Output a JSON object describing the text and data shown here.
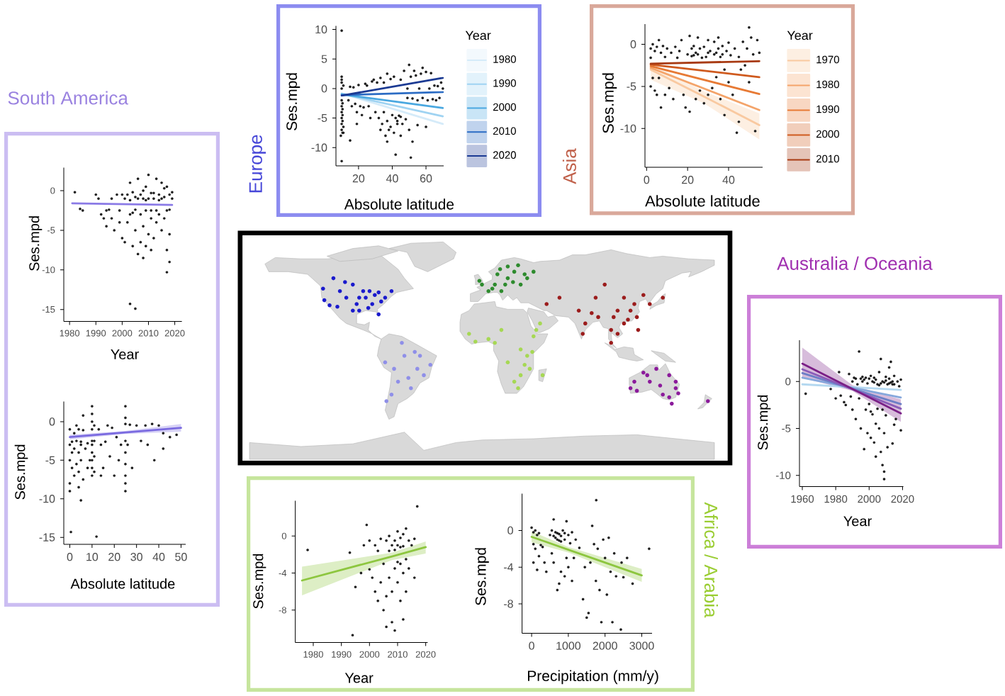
{
  "chart_data": [
    {
      "type": "scatter",
      "title": "Europe",
      "xlabel": "Absolute latitude",
      "ylabel": "Ses.mpd",
      "legend_title": "Year",
      "legend": "right",
      "xlim": [
        6.6,
        70.5
      ],
      "ylim": [
        -13.1,
        10.6
      ],
      "xticks": [
        20,
        40,
        60
      ],
      "yticks": [
        -10,
        -5,
        0,
        5,
        10
      ],
      "series": [
        {
          "color": "#1a1a1a",
          "marker": "circle",
          "x": [
            10,
            10,
            10,
            9.5,
            10,
            10,
            10,
            10,
            10,
            10,
            10.5,
            10,
            10.5,
            10.5,
            10.5,
            10.5,
            11,
            11,
            11,
            10,
            10,
            14,
            15,
            16,
            17,
            18,
            19,
            20,
            21,
            22,
            23,
            24,
            25,
            26,
            27,
            28,
            29,
            30,
            15,
            19,
            32,
            33,
            34,
            35,
            36,
            37,
            38,
            39,
            40,
            41,
            42,
            43,
            44,
            45,
            37,
            46,
            48,
            50,
            52,
            51,
            42,
            31,
            33,
            35,
            37,
            39,
            41,
            43,
            45,
            47,
            49,
            50,
            51,
            52,
            53,
            54,
            55,
            56,
            57,
            58,
            60,
            61,
            62,
            63,
            64,
            65,
            66,
            67,
            68,
            69,
            70,
            58,
            49,
            45,
            60,
            55
          ],
          "values": [
            2,
            1,
            0,
            -8,
            -2,
            -3,
            -4,
            -5,
            -6,
            -7,
            -7.5,
            1.5,
            -2.5,
            -3.5,
            -4.5,
            -5.5,
            -6.5,
            -7.5,
            0.5,
            9.8,
            -12.3,
            -2,
            0.3,
            -3,
            0.2,
            -2.6,
            -4,
            0.6,
            -3,
            -4.5,
            -3.2,
            0.8,
            0.5,
            -3,
            -5,
            1.2,
            1.5,
            -4,
            -8.8,
            -6,
            -5,
            -7,
            -6,
            -4,
            -8,
            -5.5,
            -7,
            -6.5,
            -4.5,
            -7.5,
            -5,
            -6,
            -4.6,
            -8,
            -9,
            -6,
            -5.2,
            -7,
            -9,
            -11.7,
            -11.2,
            1,
            1.8,
            1,
            2.5,
            1.6,
            2,
            -5.5,
            1.5,
            3,
            0,
            4,
            2,
            -1.7,
            3,
            2.2,
            -2,
            0,
            2.5,
            -1.6,
            2.8,
            -2,
            0,
            2.6,
            -1.8,
            0.5,
            -2,
            0.4,
            -1.6,
            1,
            0,
            3.5,
            -1.6,
            -4.8,
            -6.5,
            -6.2
          ]
        },
        {
          "type": "line",
          "name": "1980",
          "color": "#d5ebf9",
          "x": [
            10,
            70
          ],
          "values": [
            -0.8,
            -6.0
          ]
        },
        {
          "type": "line",
          "name": "1990",
          "color": "#9fd3f2",
          "x": [
            10,
            70
          ],
          "values": [
            -0.9,
            -4.7
          ]
        },
        {
          "type": "line",
          "name": "2000",
          "color": "#4aa8e0",
          "x": [
            10,
            70
          ],
          "values": [
            -1.0,
            -3.3
          ]
        },
        {
          "type": "line",
          "name": "2010",
          "color": "#2b6cc4",
          "x": [
            10,
            70
          ],
          "values": [
            -1.1,
            -0.6
          ]
        },
        {
          "type": "line",
          "name": "2020",
          "color": "#1b3a93",
          "x": [
            10,
            70
          ],
          "values": [
            -1.2,
            1.8
          ]
        }
      ]
    },
    {
      "type": "scatter",
      "title": "Asia",
      "xlabel": "Absolute latitude",
      "ylabel": "Ses.mpd",
      "legend_title": "Year",
      "legend": "right",
      "xlim": [
        -0.8,
        56.6
      ],
      "ylim": [
        -14.6,
        2.4
      ],
      "xticks": [
        0,
        20,
        40
      ],
      "yticks": [
        -10,
        -5,
        0
      ],
      "series": [
        {
          "color": "#1a1a1a",
          "marker": "circle",
          "x": [
            2,
            3,
            4,
            5,
            6,
            7,
            8,
            2,
            3,
            4,
            5,
            6,
            2,
            7,
            9,
            10,
            12,
            13,
            14,
            16,
            17,
            18,
            19,
            20,
            21,
            21,
            22,
            22,
            23,
            23,
            24,
            24,
            25,
            25,
            26,
            26,
            27,
            28,
            28,
            29,
            30,
            30,
            31,
            32,
            33,
            33,
            34,
            34,
            35,
            35,
            36,
            36,
            37,
            37,
            38,
            39,
            40,
            40,
            41,
            42,
            43,
            44,
            45,
            46,
            47,
            48,
            49,
            50,
            50,
            51,
            52,
            53,
            54,
            55,
            15,
            11,
            9,
            45,
            30,
            38
          ],
          "values": [
            -0.5,
            0,
            -0.8,
            -0.3,
            0.5,
            -1,
            -0.2,
            -1.6,
            -4,
            -5.5,
            -6,
            -4,
            -5,
            -7.5,
            -1.5,
            -0.5,
            -1,
            -6.5,
            -0.3,
            -0.8,
            0.5,
            -6,
            -7.5,
            -1.2,
            -8,
            1,
            -0.5,
            -1.4,
            -0.2,
            -1.3,
            -1,
            -6.5,
            0.8,
            -1.2,
            -0.5,
            -5.5,
            -1.6,
            -0.3,
            -7,
            -1.5,
            0.5,
            -1,
            -0.8,
            -5.2,
            0.3,
            -1.2,
            -1,
            -3.9,
            0.8,
            -0.5,
            -1.5,
            -6.5,
            -0.2,
            -1.2,
            -3,
            -0.8,
            0.2,
            -4.5,
            -1.3,
            -6,
            -0.5,
            -10.5,
            -1.5,
            -3,
            0.3,
            -2.5,
            -0.5,
            2,
            -4.5,
            0.8,
            -1.2,
            -10.3,
            0.5,
            -1,
            -1.6,
            -5.2,
            -6,
            -9.2,
            -6,
            -8.4
          ]
        },
        {
          "type": "line",
          "name": "1970",
          "color": "#f9c9a0",
          "x": [
            2,
            28,
            55
          ],
          "values": [
            -3.0,
            -6.2,
            -9.6
          ],
          "lower": [
            -4.2,
            -7.0,
            -11.3
          ],
          "upper": [
            -2.2,
            -5.6,
            -8.2
          ]
        },
        {
          "type": "line",
          "name": "1980",
          "color": "#f4a46a",
          "x": [
            2,
            55
          ],
          "values": [
            -2.8,
            -7.8
          ]
        },
        {
          "type": "line",
          "name": "1990",
          "color": "#e77a35",
          "x": [
            2,
            55
          ],
          "values": [
            -2.6,
            -5.9
          ]
        },
        {
          "type": "line",
          "name": "2000",
          "color": "#cf5a1e",
          "x": [
            2,
            55
          ],
          "values": [
            -2.4,
            -3.9
          ]
        },
        {
          "type": "line",
          "name": "2010",
          "color": "#a83a12",
          "x": [
            2,
            55
          ],
          "values": [
            -2.3,
            -2.0
          ]
        }
      ]
    },
    {
      "type": "scatter",
      "title": "South America",
      "xlabel": "Year",
      "ylabel": "Ses.mpd",
      "xlim": [
        1977.8,
        2022.7
      ],
      "ylim": [
        -16.5,
        2.9
      ],
      "xticks": [
        1980,
        1990,
        2000,
        2010,
        2020
      ],
      "yticks": [
        -15,
        -10,
        -5,
        0
      ],
      "series": [
        {
          "color": "#1a1a1a",
          "marker": "circle",
          "x": [
            1982,
            1984,
            1985,
            1990,
            1991,
            1992,
            1993,
            1994,
            1995,
            1996,
            1997,
            1998,
            1999,
            2000,
            2001,
            2002,
            2002,
            2003,
            2003,
            2003,
            2004,
            2004,
            2005,
            2005,
            2005,
            2006,
            2006,
            2006,
            2007,
            2007,
            2007,
            2008,
            2008,
            2008,
            2009,
            2009,
            2009,
            2010,
            2010,
            2010,
            2011,
            2011,
            2011,
            2012,
            2012,
            2013,
            2013,
            2013,
            2014,
            2014,
            2015,
            2015,
            2015,
            2016,
            2016,
            2017,
            2017,
            2017,
            2017,
            2018,
            2018,
            2018,
            2018,
            2019,
            2000,
            1999,
            2001,
            1996,
            1994,
            2003,
            2005,
            2008,
            2011,
            2014,
            2016,
            2012,
            2009,
            2019,
            2004
          ],
          "values": [
            -0.2,
            -2.3,
            -2.5,
            -0.5,
            -1,
            -3,
            -3.5,
            -4.5,
            -2.4,
            -1,
            -5,
            -0.5,
            -2.5,
            -6,
            -1,
            -0.5,
            -4,
            1,
            -3,
            -14.3,
            -7,
            -0.2,
            -2.4,
            -14.9,
            -5,
            -1,
            1.5,
            -8,
            -3,
            -0.5,
            -6.5,
            -1,
            -4.5,
            -8.5,
            0.5,
            -2.5,
            -7,
            2,
            -1,
            -5.5,
            -0.3,
            -3.5,
            -7.5,
            -1,
            -6,
            1.5,
            -2.5,
            -4,
            -0.5,
            -3,
            1,
            -1,
            -5,
            -0.8,
            -3.5,
            0.5,
            -2.5,
            -7.5,
            -10.3,
            -0.5,
            -2.4,
            -5.5,
            -9,
            -1,
            -0.5,
            -4,
            -6.5,
            -3.5,
            -2.5,
            -1.2,
            -0.8,
            0,
            -2.5,
            -1.2,
            0.3,
            -0.3,
            -1.2,
            -0.2,
            -2.8
          ]
        },
        {
          "type": "line",
          "color": "#8a7ae6",
          "x": [
            1981,
            2019
          ],
          "values": [
            -1.6,
            -1.8
          ]
        }
      ]
    },
    {
      "type": "scatter",
      "xlabel": "Absolute latitude",
      "ylabel": "Ses.mpd",
      "xlim": [
        -2.7,
        52.1
      ],
      "ylim": [
        -15.9,
        2.6
      ],
      "xticks": [
        0,
        10,
        20,
        30,
        40,
        50
      ],
      "yticks": [
        -15,
        -10,
        -5,
        0
      ],
      "series": [
        {
          "color": "#1a1a1a",
          "marker": "circle",
          "x": [
            0,
            0,
            0,
            0,
            0,
            0.5,
            1,
            1,
            1,
            2,
            2,
            2,
            3,
            3,
            3,
            4,
            4,
            4,
            4,
            5,
            5,
            5,
            5,
            6,
            6,
            6,
            7,
            8,
            9,
            10,
            10,
            10,
            10,
            10,
            10,
            10,
            10,
            10,
            10,
            11,
            11,
            11,
            11,
            12,
            13,
            14,
            15,
            16,
            17,
            18,
            19,
            20,
            21,
            22,
            23,
            25,
            25,
            25,
            25,
            25,
            25,
            25,
            25,
            25,
            26,
            27,
            28,
            30,
            32,
            34,
            35,
            37,
            38,
            40,
            42,
            42,
            45,
            48,
            14,
            8
          ],
          "values": [
            -1,
            -3,
            -5,
            -8,
            -9,
            -14.3,
            -2.6,
            -4,
            -6,
            -1.5,
            -3.5,
            -7,
            -0.5,
            -2.5,
            -5.5,
            -1,
            -4,
            -6.5,
            -8.5,
            -2.6,
            -3,
            -5,
            -10.2,
            0.8,
            -1.1,
            -7.5,
            -3.5,
            -2.8,
            -5,
            2,
            1,
            0,
            -1,
            -2.5,
            -3,
            -4,
            -5,
            -6,
            -7,
            -0.5,
            -2.5,
            -4.5,
            -6.5,
            -14.9,
            -1,
            -3,
            -6,
            -2.6,
            -0.5,
            -4.5,
            -0.8,
            -7,
            -2,
            -5,
            -3,
            2,
            0.5,
            -0.3,
            -2.5,
            -4,
            -5.5,
            -7,
            -8,
            -9,
            -3,
            -0.4,
            -6,
            -0.5,
            -2.5,
            -0.5,
            -3,
            -0.3,
            -5,
            -0.5,
            -1.5,
            -3.5,
            -2,
            -1.7,
            -7,
            -6
          ]
        },
        {
          "type": "line",
          "color": "#7a6ae0",
          "x": [
            0,
            25,
            50
          ],
          "values": [
            -2.0,
            -1.4,
            -0.8
          ],
          "lower": [
            -2.3,
            -1.6,
            -1.3
          ],
          "upper": [
            -1.7,
            -1.2,
            -0.3
          ]
        }
      ]
    },
    {
      "type": "scatter",
      "title": "Australia / Oceania",
      "xlabel": "Year",
      "ylabel": "Ses.mpd",
      "xlim": [
        1958.3,
        2020.5
      ],
      "ylim": [
        -11.2,
        4.4
      ],
      "xticks": [
        1960,
        1980,
        2000,
        2020
      ],
      "yticks": [
        -10,
        -5,
        0
      ],
      "series": [
        {
          "color": "#1a1a1a",
          "marker": "circle",
          "x": [
            1962,
            1977,
            1980,
            1982,
            1983,
            1985,
            1986,
            1988,
            1989,
            1990,
            1990,
            1991,
            1992,
            1994,
            1993,
            1994,
            1995,
            1995,
            1996,
            1997,
            1997,
            1998,
            1999,
            1999,
            2000,
            2000,
            2001,
            2001,
            2002,
            2002,
            2003,
            2003,
            2004,
            2004,
            2005,
            2005,
            2006,
            2006,
            2007,
            2007,
            2007,
            2008,
            2008,
            2008,
            2009,
            2009,
            2009,
            2009,
            2010,
            2010,
            2011,
            2011,
            2012,
            2012,
            2013,
            2013,
            2014,
            2014,
            2015,
            2015,
            2004,
            1992,
            1996,
            1998,
            2001,
            2003,
            2006,
            2010,
            2012,
            2014,
            2015,
            2017,
            2018,
            2019,
            2016,
            2019
          ],
          "values": [
            -1.3,
            -0.8,
            -1.8,
            1,
            -1.5,
            -2.2,
            -2.5,
            0.8,
            -1.6,
            -3,
            0,
            0.4,
            -4,
            3.2,
            -0.3,
            -1.8,
            0.3,
            -5,
            0,
            -7.2,
            0.2,
            -3,
            -0.2,
            -5.5,
            0.3,
            -2.4,
            -3.2,
            -6,
            0,
            -3.5,
            -0.1,
            -6.5,
            0.2,
            -4.5,
            -0.3,
            -2.9,
            1,
            -5,
            2.4,
            -0.2,
            -7.5,
            0,
            -3,
            -8.9,
            -0.1,
            -10.4,
            -9.6,
            -5.5,
            0.5,
            -3.6,
            -0.3,
            -7,
            1.5,
            -0.2,
            2.1,
            -0.1,
            0,
            -6.6,
            -0.3,
            -4.6,
            -8,
            0.3,
            0.5,
            0.4,
            0.6,
            0.4,
            -0.4,
            0.1,
            0.3,
            -0.3,
            0.6,
            0,
            -0.5,
            0.2,
            -4,
            -5.2
          ]
        },
        {
          "type": "line",
          "color": "#b4d8f0",
          "x": [
            1960,
            2019
          ],
          "values": [
            -0.3,
            -0.9
          ]
        },
        {
          "type": "line",
          "color": "#86a8dc",
          "x": [
            1960,
            2019
          ],
          "values": [
            0.4,
            -1.7
          ]
        },
        {
          "type": "line",
          "color": "#6d7fc6",
          "x": [
            1960,
            2019
          ],
          "values": [
            0.9,
            -2.4
          ]
        },
        {
          "type": "line",
          "color": "#8a5cb8",
          "x": [
            1960,
            2019
          ],
          "values": [
            1.3,
            -2.9
          ]
        },
        {
          "type": "line",
          "color": "#7a1f86",
          "x": [
            1960,
            1990,
            2019
          ],
          "values": [
            1.9,
            -0.8,
            -3.4
          ],
          "lower": [
            0.4,
            -1.0,
            -4.3
          ],
          "upper": [
            3.6,
            -0.4,
            -1.9
          ]
        }
      ]
    },
    {
      "type": "scatter",
      "xlabel": "Year",
      "ylabel": "Ses.mpd",
      "xlim": [
        1973.6,
        2020.7
      ],
      "ylim": [
        -11.5,
        3.8
      ],
      "xticks": [
        1980,
        1990,
        2000,
        2010,
        2020
      ],
      "yticks": [
        -8,
        -4,
        0
      ],
      "series": [
        {
          "color": "#1a1a1a",
          "marker": "circle",
          "x": [
            1978,
            1993,
            1994,
            1995,
            1997,
            1998,
            1999,
            2000,
            2000,
            2001,
            2002,
            2002,
            2003,
            2003,
            2004,
            2004,
            2005,
            2005,
            2006,
            2006,
            2006,
            2007,
            2007,
            2007,
            2008,
            2008,
            2008,
            2009,
            2009,
            2009,
            2010,
            2010,
            2010,
            2011,
            2011,
            2011,
            2012,
            2012,
            2012,
            2013,
            2013,
            2013,
            2014,
            2014,
            2015,
            2016,
            2016,
            2017,
            2010,
            2009,
            2011,
            2012
          ],
          "values": [
            -1.5,
            -1.8,
            -10.7,
            -5.5,
            -4,
            -1,
            1.2,
            -3.6,
            -0.5,
            -4.5,
            -6,
            -1,
            -1.6,
            -7,
            -0.3,
            -5,
            -8,
            -3,
            -0.5,
            -6.5,
            -9.8,
            -1.6,
            0,
            -4.5,
            -1,
            -9.3,
            -6,
            -0.5,
            -3.5,
            -10.2,
            0.5,
            -2.8,
            -5,
            -0.2,
            -3,
            -7,
            -1.1,
            -4,
            -9,
            0.8,
            -2.5,
            -6,
            -0.5,
            -3.5,
            -1,
            -0.3,
            -4.5,
            3.2,
            -1,
            -1.5,
            -1.2,
            0.2
          ]
        },
        {
          "type": "line",
          "color": "#8dc63f",
          "x": [
            1976,
            2008,
            2020
          ],
          "values": [
            -4.8,
            -2.2,
            -1.2
          ],
          "lower": [
            -6.4,
            -2.6,
            -1.9
          ],
          "upper": [
            -3.3,
            -1.8,
            -0.6
          ]
        }
      ]
    },
    {
      "type": "scatter",
      "xlabel": "Precipitation (mm/y)",
      "ylabel": "Ses.mpd",
      "annotations": [
        "Africa / Arabia"
      ],
      "xlim": [
        -260,
        3280
      ],
      "ylim": [
        -11.2,
        4
      ],
      "xticks": [
        0,
        1000,
        2000,
        3000
      ],
      "yticks": [
        -8,
        -4,
        0
      ],
      "series": [
        {
          "color": "#1a1a1a",
          "marker": "circle",
          "x": [
            0,
            50,
            100,
            150,
            200,
            250,
            50,
            100,
            200,
            300,
            350,
            150,
            400,
            50,
            500,
            550,
            600,
            650,
            700,
            750,
            800,
            850,
            900,
            950,
            1000,
            1050,
            1100,
            700,
            750,
            800,
            900,
            1000,
            600,
            550,
            950,
            1100,
            1150,
            1200,
            1300,
            1400,
            1450,
            1500,
            1550,
            1600,
            1650,
            1700,
            1750,
            1760,
            1800,
            1850,
            1900,
            1950,
            2000,
            2050,
            2100,
            2150,
            2200,
            2250,
            2300,
            2430,
            2450,
            2500,
            2600,
            2750,
            3200,
            600,
            650,
            700,
            750,
            800,
            900
          ],
          "values": [
            0.3,
            -0.2,
            0,
            -0.5,
            -0.3,
            -1.6,
            -1.5,
            -2,
            -2.8,
            -1.8,
            -3.5,
            -4.3,
            -4.5,
            -3.5,
            -0.5,
            0,
            1.2,
            -0.8,
            -0.3,
            -1.1,
            -0.6,
            0,
            -1,
            1,
            -0.5,
            -1.4,
            -0.2,
            -6.5,
            -5.8,
            -4.5,
            -5,
            -4,
            -3.5,
            -2.5,
            -3,
            -5.5,
            -3,
            -1,
            -1.9,
            -7.5,
            -4,
            -9.5,
            -9,
            -3.5,
            0.5,
            -1.5,
            -5.5,
            3.3,
            -2,
            -6.5,
            -10,
            -1,
            -3,
            -7,
            -0.8,
            -4.5,
            -10,
            -2.5,
            -5,
            -10.8,
            -3.5,
            -5.1,
            -3,
            -5.8,
            -2,
            -0.6,
            -0.2,
            -1,
            -0.4,
            -1.2,
            -0.3
          ]
        },
        {
          "type": "line",
          "color": "#8dc63f",
          "x": [
            0,
            1000,
            3000
          ],
          "values": [
            -0.7,
            -2.1,
            -4.9
          ],
          "lower": [
            -1.3,
            -2.4,
            -5.6
          ],
          "upper": [
            -0.1,
            -1.8,
            -4.2
          ]
        }
      ]
    }
  ]
}
